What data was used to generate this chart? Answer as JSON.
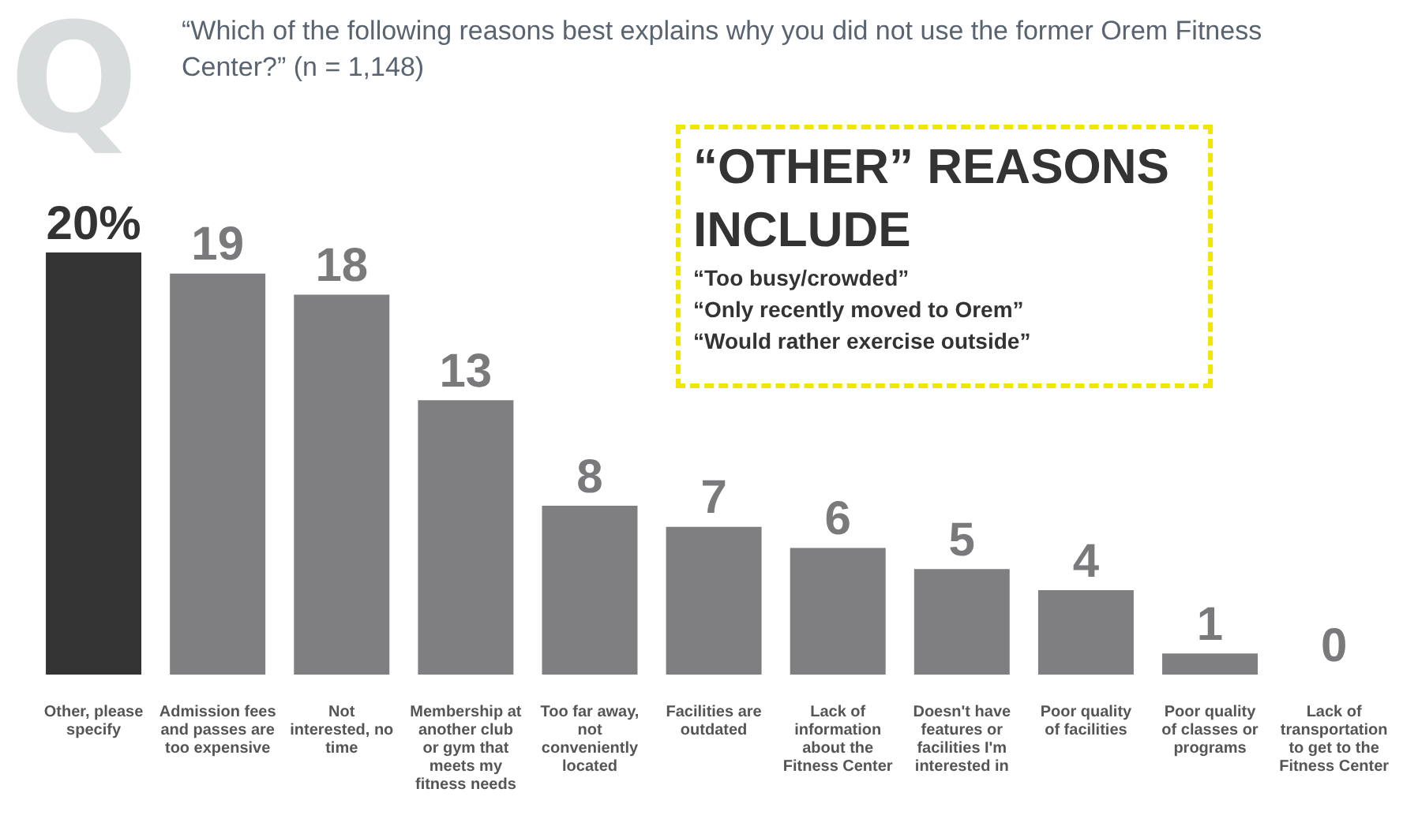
{
  "chart_data": {
    "type": "bar",
    "title": "“Which of the following reasons best explains why you did not use the former Orem Fitness Center?” (n = 1,148)",
    "categories": [
      "Other, please specify",
      "Admission fees and passes are too expensive",
      "Not interested, no time",
      "Membership at another club or gym that meets my fitness needs",
      "Too far away, not conveniently located",
      "Facilities are outdated",
      "Lack of information about the Fitness Center",
      "Doesn't have features or facilities I'm interested in",
      "Poor quality of facilities",
      "Poor quality of classes or programs",
      "Lack of transportation to get to the Fitness Center"
    ],
    "values": [
      20,
      19,
      18,
      13,
      8,
      7,
      6,
      5,
      4,
      1,
      0
    ],
    "colors": [
      "#333333",
      "#7f7f81",
      "#7f7f81",
      "#7f7f81",
      "#7f7f81",
      "#7f7f81",
      "#7f7f81",
      "#7f7f81",
      "#7f7f81",
      "#7f7f81",
      "#7f7f81"
    ],
    "value_labels": [
      "20%",
      "19",
      "18",
      "13",
      "8",
      "7",
      "6",
      "5",
      "4",
      "1",
      "0"
    ],
    "ylim": [
      0,
      20
    ],
    "tick_labels": "x",
    "grid": false,
    "legend": false,
    "annotations": [
      "Q",
      "“OTHER” REASONS INCLUDE",
      "“Too busy/crowded”",
      "“Only recently moved to Orem”",
      "“Would rather exercise outside”"
    ]
  }
}
